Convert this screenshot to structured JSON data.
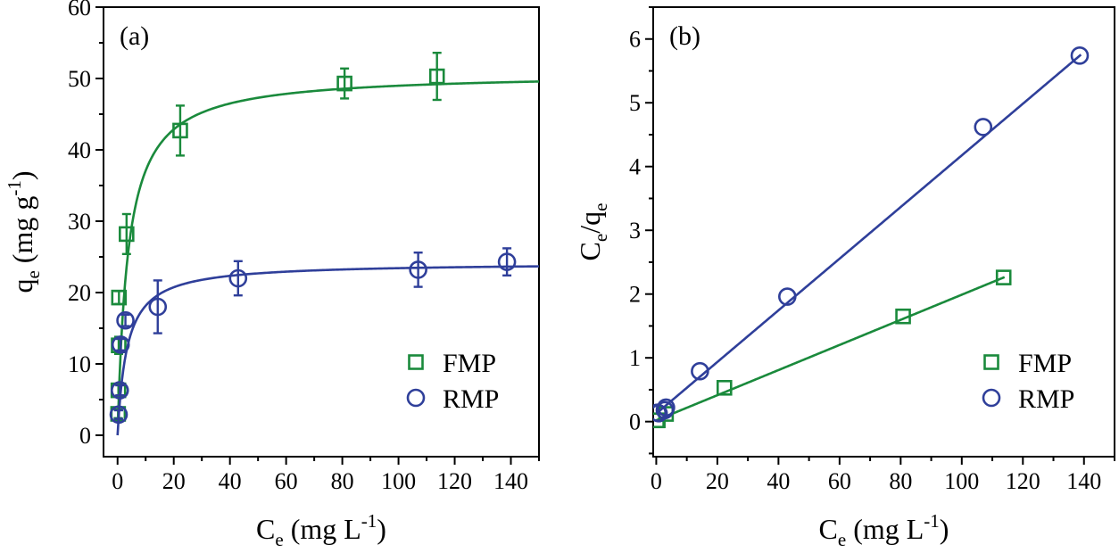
{
  "colors": {
    "FMP": "#1a8a3c",
    "RMP": "#2f3f9a",
    "axis": "#000000"
  },
  "chart_data": [
    {
      "type": "scatter",
      "panel_label": "(a)",
      "xlabel": {
        "main": "C",
        "sub": "e",
        "rest": " (mg L",
        "sup": "-1",
        "end": ")"
      },
      "ylabel": {
        "main": "q",
        "sub": "e",
        "rest": " (mg g",
        "sup": "-1",
        "end": ")"
      },
      "xlim": [
        -5,
        150
      ],
      "ylim": [
        -3,
        60
      ],
      "xticks": [
        0,
        20,
        40,
        60,
        80,
        100,
        120,
        140
      ],
      "yticks": [
        0,
        10,
        20,
        30,
        40,
        50,
        60
      ],
      "grid": false,
      "legend_position": "bottom-right",
      "series": [
        {
          "name": "FMP",
          "marker": "square",
          "points": [
            {
              "x": 0.2,
              "y": 3.0,
              "err": 0.6
            },
            {
              "x": 0.3,
              "y": 6.3,
              "err": 0.8
            },
            {
              "x": 0.4,
              "y": 12.6,
              "err": 1.2
            },
            {
              "x": 0.5,
              "y": 19.3,
              "err": 0.9
            },
            {
              "x": 3.2,
              "y": 28.2,
              "err": 2.8
            },
            {
              "x": 22.3,
              "y": 42.7,
              "err": 3.5
            },
            {
              "x": 80.8,
              "y": 49.3,
              "err": 2.1
            },
            {
              "x": 113.7,
              "y": 50.3,
              "err": 3.3
            }
          ],
          "fit": {
            "model": "langmuir",
            "qmax": 50.8,
            "KL": 0.27,
            "x_range": [
              0.2,
              150
            ]
          }
        },
        {
          "name": "RMP",
          "marker": "circle",
          "points": [
            {
              "x": 0.4,
              "y": 2.9,
              "err": 0.6
            },
            {
              "x": 0.8,
              "y": 6.3,
              "err": 0.7
            },
            {
              "x": 1.1,
              "y": 12.7,
              "err": 0.8
            },
            {
              "x": 2.8,
              "y": 16.1,
              "err": 0.8
            },
            {
              "x": 14.3,
              "y": 18.0,
              "err": 3.7
            },
            {
              "x": 42.9,
              "y": 22.0,
              "err": 2.4
            },
            {
              "x": 107.0,
              "y": 23.2,
              "err": 2.4
            },
            {
              "x": 138.6,
              "y": 24.3,
              "err": 1.9
            }
          ],
          "fit": {
            "model": "langmuir",
            "qmax": 24.2,
            "KL": 0.3,
            "x_range": [
              0,
              150
            ]
          }
        }
      ]
    },
    {
      "type": "scatter",
      "panel_label": "(b)",
      "xlabel": {
        "main": "C",
        "sub": "e",
        "rest": " (mg L",
        "sup": "-1",
        "end": ")"
      },
      "ylabel": {
        "main": "C",
        "sub": "e",
        "rest": "/q",
        "sub2": "e"
      },
      "xlim": [
        -1,
        150
      ],
      "ylim": [
        -0.55,
        6.5
      ],
      "xticks": [
        0,
        20,
        40,
        60,
        80,
        100,
        120,
        140
      ],
      "yticks": [
        0,
        1,
        2,
        3,
        4,
        5,
        6
      ],
      "grid": false,
      "legend_position": "bottom-right",
      "series": [
        {
          "name": "FMP",
          "marker": "square",
          "points": [
            {
              "x": 0.2,
              "y": 0.02
            },
            {
              "x": 0.5,
              "y": 0.02
            },
            {
              "x": 3.2,
              "y": 0.12
            },
            {
              "x": 22.3,
              "y": 0.53
            },
            {
              "x": 80.8,
              "y": 1.65
            },
            {
              "x": 113.7,
              "y": 2.26
            }
          ],
          "fit": {
            "model": "linear",
            "slope": 0.0197,
            "intercept": 0.02,
            "x_range": [
              0,
              114
            ]
          }
        },
        {
          "name": "RMP",
          "marker": "circle",
          "points": [
            {
              "x": 0.4,
              "y": 0.14
            },
            {
              "x": 0.8,
              "y": 0.13
            },
            {
              "x": 2.8,
              "y": 0.18
            },
            {
              "x": 3.2,
              "y": 0.22
            },
            {
              "x": 14.3,
              "y": 0.79
            },
            {
              "x": 42.9,
              "y": 1.96
            },
            {
              "x": 107.0,
              "y": 4.62
            },
            {
              "x": 138.6,
              "y": 5.74
            }
          ],
          "fit": {
            "model": "linear",
            "slope": 0.0405,
            "intercept": 0.125,
            "x_range": [
              0,
              139
            ]
          }
        }
      ]
    }
  ]
}
